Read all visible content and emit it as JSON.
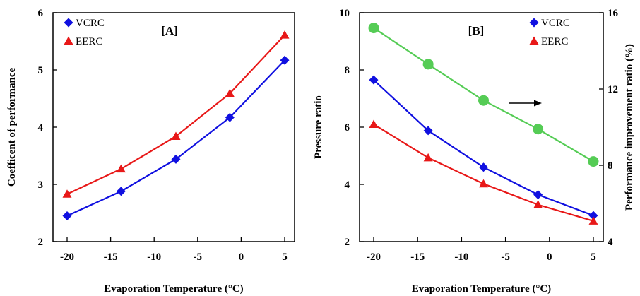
{
  "colors": {
    "vcrc": "#1010e0",
    "eerc": "#e81818",
    "improvement": "#55cc55"
  },
  "chart_data": [
    {
      "type": "line",
      "panel_label": "[A]",
      "xlabel": "Evaporation Temperature (°C)",
      "ylabel": "Coefficent of performance",
      "xlim": [
        -21,
        5
      ],
      "ylim": [
        2,
        6
      ],
      "xticks": [
        "-20",
        "-15",
        "-10",
        "-5",
        "0",
        "5"
      ],
      "yticks": [
        "2",
        "3",
        "4",
        "5",
        "6"
      ],
      "legend_position": "top-left",
      "grid": false,
      "x": [
        -20,
        -13.8,
        -7.5,
        -1.3,
        5
      ],
      "series": [
        {
          "name": "VCRC",
          "marker": "diamond",
          "values": [
            2.45,
            2.88,
            3.44,
            4.17,
            5.17
          ]
        },
        {
          "name": "EERC",
          "marker": "triangle",
          "values": [
            2.83,
            3.27,
            3.84,
            4.59,
            5.61
          ]
        }
      ]
    },
    {
      "type": "line",
      "panel_label": "[B]",
      "xlabel": "Evaporation Temperature (°C)",
      "ylabel": "Pressure ratio",
      "y2label": "Performance improvement ratio (%)",
      "xlim": [
        -21,
        5
      ],
      "ylim": [
        2,
        10
      ],
      "y2lim": [
        4,
        16
      ],
      "xticks": [
        "-20",
        "-15",
        "-10",
        "-5",
        "0",
        "5"
      ],
      "yticks": [
        "2",
        "4",
        "6",
        "8",
        "10"
      ],
      "y2ticks": [
        "4",
        "8",
        "12",
        "16"
      ],
      "legend_position": "top-right",
      "grid": false,
      "annotation": "arrow pointing right to the secondary axis",
      "x": [
        -20,
        -13.8,
        -7.5,
        -1.3,
        5
      ],
      "series": [
        {
          "name": "VCRC",
          "marker": "diamond",
          "axis": "left",
          "values": [
            7.65,
            5.88,
            4.6,
            3.64,
            2.91
          ]
        },
        {
          "name": "EERC",
          "marker": "triangle",
          "axis": "left",
          "values": [
            6.1,
            4.93,
            4.02,
            3.29,
            2.72
          ]
        },
        {
          "name": "",
          "marker": "circle",
          "axis": "right",
          "values": [
            15.2,
            13.3,
            11.4,
            9.9,
            8.2
          ]
        }
      ]
    }
  ]
}
